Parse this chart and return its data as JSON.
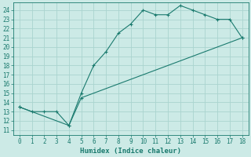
{
  "xlabel": "Humidex (Indice chaleur)",
  "ylabel": "",
  "xlim": [
    -0.5,
    18.5
  ],
  "ylim": [
    10.5,
    24.8
  ],
  "yticks": [
    11,
    12,
    13,
    14,
    15,
    16,
    17,
    18,
    19,
    20,
    21,
    22,
    23,
    24
  ],
  "xticks": [
    0,
    1,
    2,
    3,
    4,
    5,
    6,
    7,
    8,
    9,
    10,
    11,
    12,
    13,
    14,
    15,
    16,
    17,
    18
  ],
  "line1_x": [
    0,
    1,
    2,
    3,
    4,
    5,
    6,
    7,
    8,
    9,
    10,
    11,
    12,
    13,
    14,
    15,
    16,
    17,
    18
  ],
  "line1_y": [
    13.5,
    13.0,
    13.0,
    13.0,
    11.5,
    15.0,
    18.0,
    19.5,
    21.5,
    22.5,
    24.0,
    23.5,
    23.5,
    24.5,
    24.0,
    23.5,
    23.0,
    23.0,
    21.0
  ],
  "line2_x": [
    0,
    4,
    5,
    18
  ],
  "line2_y": [
    13.5,
    11.5,
    14.5,
    21.0
  ],
  "line_color": "#1a7a6e",
  "bg_color": "#cceae6",
  "grid_color": "#aad4cf",
  "tick_fontsize": 5.5,
  "xlabel_fontsize": 6.5,
  "marker": "+",
  "markersize": 3.5,
  "linewidth": 0.8
}
